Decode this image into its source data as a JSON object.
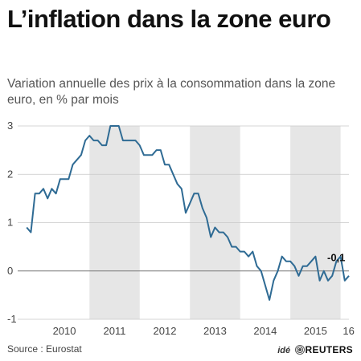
{
  "title": "L’inflation dans la zone euro",
  "subtitle": "Variation annuelle des prix à la consommation dans la zone euro, en % par mois",
  "source": "Source : Eurostat",
  "logo": {
    "prefix": "idé",
    "brand": "REUTERS"
  },
  "chart_data": {
    "type": "line",
    "title": "L’inflation dans la zone euro",
    "subtitle": "Variation annuelle des prix à la consommation dans la zone euro, en % par mois",
    "xlabel": "",
    "ylabel": "",
    "ylim": [
      -1,
      3
    ],
    "yticks": [
      -1,
      0,
      1,
      2,
      3
    ],
    "xticks": [
      "2010",
      "2011",
      "2012",
      "2013",
      "2014",
      "2015",
      "16"
    ],
    "xrange": [
      "2009-09",
      "2016-03"
    ],
    "grid": "horizontal",
    "shaded_years": [
      "2011",
      "2013",
      "2015"
    ],
    "colors": {
      "line": "#2f6b94",
      "grid": "#c8c8c8",
      "shade": "#e6e6e6",
      "baseline": "#777777"
    },
    "end_label": "-0,1",
    "series": [
      {
        "x": [
          "2009-10",
          "2009-11",
          "2009-12",
          "2010-01",
          "2010-02",
          "2010-03",
          "2010-04",
          "2010-05",
          "2010-06",
          "2010-07",
          "2010-08",
          "2010-09",
          "2010-10",
          "2010-11",
          "2010-12",
          "2011-01",
          "2011-02",
          "2011-03",
          "2011-04",
          "2011-05",
          "2011-06",
          "2011-07",
          "2011-08",
          "2011-09",
          "2011-10",
          "2011-11",
          "2011-12",
          "2012-01",
          "2012-02",
          "2012-03",
          "2012-04",
          "2012-05",
          "2012-06",
          "2012-07",
          "2012-08",
          "2012-09",
          "2012-10",
          "2012-11",
          "2012-12",
          "2013-01",
          "2013-02",
          "2013-03",
          "2013-04",
          "2013-05",
          "2013-06",
          "2013-07",
          "2013-08",
          "2013-09",
          "2013-10",
          "2013-11",
          "2013-12",
          "2014-01",
          "2014-02",
          "2014-03",
          "2014-04",
          "2014-05",
          "2014-06",
          "2014-07",
          "2014-08",
          "2014-09",
          "2014-10",
          "2014-11",
          "2014-12",
          "2015-01",
          "2015-02",
          "2015-03",
          "2015-04",
          "2015-05",
          "2015-06",
          "2015-07",
          "2015-08",
          "2015-09",
          "2015-10",
          "2015-11",
          "2015-12",
          "2016-01",
          "2016-02",
          "2016-03"
        ],
        "values": [
          0.9,
          0.8,
          1.6,
          1.6,
          1.7,
          1.5,
          1.7,
          1.6,
          1.9,
          1.9,
          1.9,
          2.2,
          2.3,
          2.4,
          2.7,
          2.8,
          2.7,
          2.7,
          2.6,
          2.6,
          3.0,
          3.0,
          3.0,
          2.7,
          2.7,
          2.7,
          2.7,
          2.6,
          2.4,
          2.4,
          2.4,
          2.5,
          2.5,
          2.2,
          2.2,
          2.0,
          1.8,
          1.7,
          1.2,
          1.4,
          1.6,
          1.6,
          1.3,
          1.1,
          0.7,
          0.9,
          0.8,
          0.8,
          0.7,
          0.5,
          0.5,
          0.4,
          0.4,
          0.3,
          0.4,
          0.1,
          0.0,
          -0.3,
          -0.6,
          -0.2,
          0.0,
          0.3,
          0.2,
          0.2,
          0.1,
          -0.1,
          0.1,
          0.1,
          0.2,
          0.3,
          -0.2,
          0.0,
          -0.2,
          -0.1,
          0.2,
          0.3,
          -0.2,
          -0.1
        ]
      }
    ]
  }
}
